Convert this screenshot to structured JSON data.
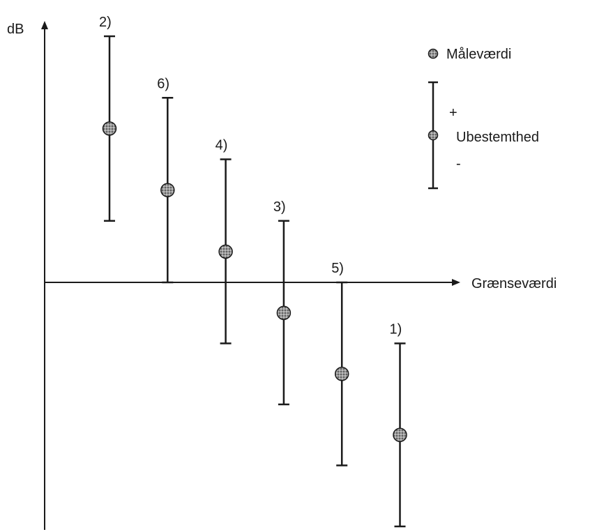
{
  "chart_data": {
    "type": "scatter",
    "ylabel": "dB",
    "xlabel": "Grænseværdi",
    "grid": false,
    "legend_placement": "top-right",
    "legend": {
      "point_label": "Måleværdi",
      "errorbar_plus": "+",
      "errorbar_label": "Ubestemthed",
      "errorbar_minus": "-"
    },
    "series": [
      {
        "label": "2)",
        "order": 1,
        "value": 2.5,
        "upper": 4.0,
        "lower": 1.0
      },
      {
        "label": "6)",
        "order": 2,
        "value": 1.5,
        "upper": 3.0,
        "lower": 0.0
      },
      {
        "label": "4)",
        "order": 3,
        "value": 0.5,
        "upper": 2.0,
        "lower": -1.0
      },
      {
        "label": "3)",
        "order": 4,
        "value": -0.5,
        "upper": 1.0,
        "lower": -2.0
      },
      {
        "label": "5)",
        "order": 5,
        "value": -1.5,
        "upper": 0.0,
        "lower": -3.0
      },
      {
        "label": "1)",
        "order": 6,
        "value": -2.5,
        "upper": -1.0,
        "lower": -4.0
      }
    ],
    "ylim": [
      -4.0,
      4.0
    ],
    "point_color": "#8a8a8a"
  }
}
